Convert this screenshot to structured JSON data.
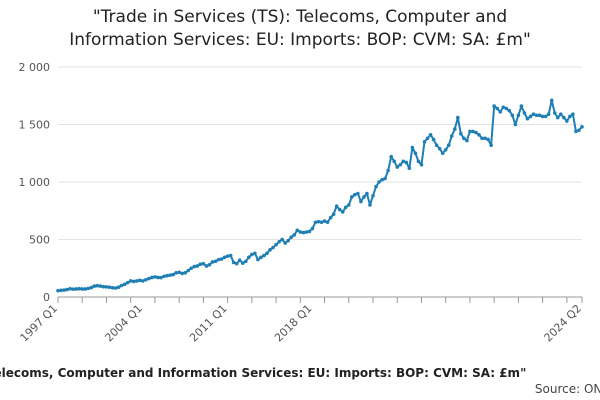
{
  "chart_data": {
    "type": "line",
    "title": "\"Trade in Services (TS): Telecoms, Computer and\nInformation Services: EU: Imports: BOP: CVM: SA: £m\"",
    "footer_title": "\"Trade in Services (TS): Telecoms, Computer and Information Services: EU: Imports: BOP: CVM: SA: £m\"",
    "source": "Source: ONS",
    "ylim": [
      0,
      2000
    ],
    "yticks": [
      0,
      500,
      1000,
      1500,
      2000
    ],
    "ytick_labels": [
      "0",
      "500",
      "1 000",
      "1 500",
      "2 000"
    ],
    "xticks": [
      "1997 Q1",
      "2004 Q1",
      "2011 Q1",
      "2018 Q1",
      "2024 Q2"
    ],
    "x_start": "1997 Q1",
    "x_end": "2024 Q2",
    "grid": true,
    "line_color": "#1f7fb4",
    "series": [
      {
        "values": [
          55,
          58,
          60,
          65,
          72,
          68,
          70,
          72,
          70,
          70,
          75,
          82,
          95,
          98,
          95,
          90,
          88,
          85,
          80,
          78,
          85,
          100,
          110,
          125,
          140,
          135,
          140,
          145,
          140,
          150,
          160,
          170,
          175,
          170,
          168,
          180,
          185,
          190,
          195,
          210,
          215,
          205,
          210,
          230,
          250,
          265,
          270,
          285,
          290,
          270,
          280,
          305,
          310,
          325,
          330,
          345,
          355,
          360,
          300,
          290,
          320,
          295,
          310,
          345,
          370,
          380,
          325,
          345,
          360,
          380,
          410,
          430,
          455,
          480,
          500,
          470,
          490,
          520,
          540,
          580,
          565,
          560,
          565,
          570,
          595,
          650,
          655,
          650,
          660,
          650,
          690,
          720,
          790,
          760,
          740,
          780,
          800,
          870,
          890,
          900,
          830,
          870,
          900,
          800,
          880,
          960,
          1000,
          1020,
          1030,
          1100,
          1220,
          1180,
          1130,
          1150,
          1180,
          1170,
          1120,
          1300,
          1250,
          1180,
          1150,
          1350,
          1380,
          1410,
          1370,
          1320,
          1290,
          1250,
          1280,
          1320,
          1400,
          1460,
          1560,
          1420,
          1380,
          1360,
          1440,
          1440,
          1430,
          1410,
          1380,
          1380,
          1370,
          1320,
          1660,
          1640,
          1610,
          1650,
          1640,
          1620,
          1580,
          1500,
          1580,
          1660,
          1600,
          1550,
          1570,
          1590,
          1580,
          1580,
          1570,
          1570,
          1590,
          1710,
          1600,
          1560,
          1590,
          1560,
          1530,
          1570,
          1590,
          1440,
          1450,
          1480
        ]
      }
    ]
  }
}
